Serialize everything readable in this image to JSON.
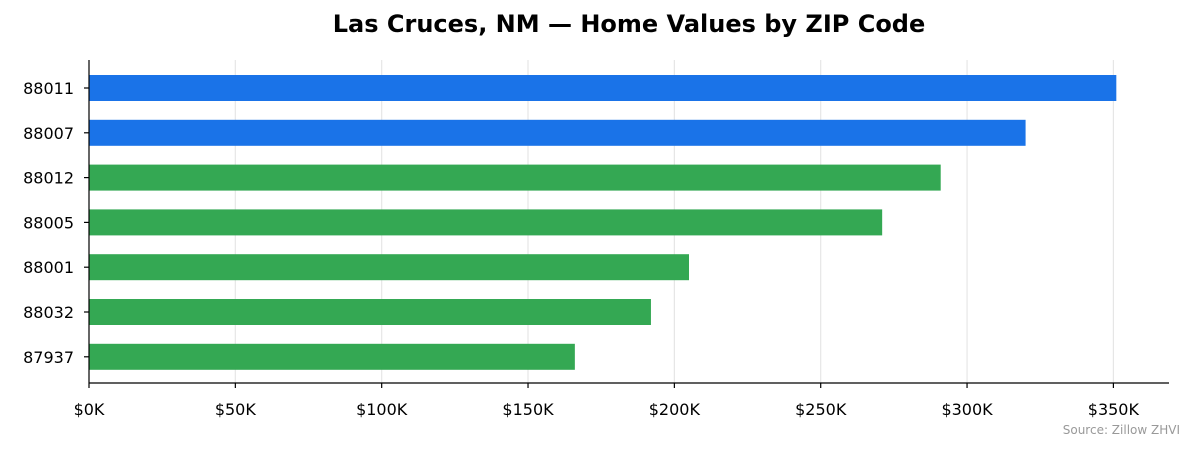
{
  "chart_data": {
    "type": "bar",
    "orientation": "horizontal",
    "title": "Las Cruces, NM — Home Values by ZIP Code",
    "xlabel": "",
    "ylabel": "",
    "categories": [
      "88011",
      "88007",
      "88012",
      "88005",
      "88001",
      "88032",
      "87937"
    ],
    "values": [
      351000,
      320000,
      291000,
      271000,
      205000,
      192000,
      166000
    ],
    "bar_colors": [
      "#1a73e8",
      "#1a73e8",
      "#34a853",
      "#34a853",
      "#34a853",
      "#34a853",
      "#34a853"
    ],
    "xlim": [
      0,
      369000
    ],
    "xticks": [
      0,
      50000,
      100000,
      150000,
      200000,
      250000,
      300000,
      350000
    ],
    "xtick_labels": [
      "$0K",
      "$50K",
      "$100K",
      "$150K",
      "$200K",
      "$250K",
      "$300K",
      "$350K"
    ],
    "grid": "vertical",
    "legend": "none"
  },
  "source": "Source: Zillow ZHVI"
}
